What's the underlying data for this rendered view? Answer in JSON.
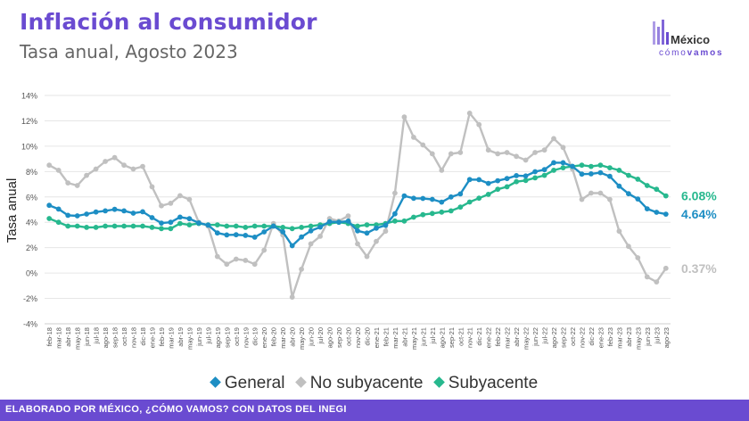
{
  "header": {
    "title": "Inflación al consumidor",
    "subtitle": "Tasa anual, Agosto 2023"
  },
  "logo": {
    "word": "México",
    "sub_a": "cómo",
    "sub_b": "vamos"
  },
  "footer": {
    "text": "ELABORADO POR MÉXICO, ¿CÓMO VAMOS? CON DATOS DEL INEGI"
  },
  "legend": [
    {
      "label": "General",
      "color": "#1d8ec4"
    },
    {
      "label": "No subyacente",
      "color": "#c0c0c0"
    },
    {
      "label": "Subyacente",
      "color": "#27b88e"
    }
  ],
  "chart_data": {
    "type": "line",
    "ylabel": "Tasa anual",
    "xlabel": "",
    "ylim": [
      -4,
      14
    ],
    "yticks": [
      "-4%",
      "-2%",
      "0%",
      "2%",
      "4%",
      "6%",
      "8%",
      "10%",
      "12%",
      "14%"
    ],
    "grid": true,
    "legend_position": "bottom",
    "x_labels": [
      "feb-18",
      "mar-18",
      "abr-18",
      "may-18",
      "jun-18",
      "jul-18",
      "ago-18",
      "sep-18",
      "oct-18",
      "nov-18",
      "dic-18",
      "ene-19",
      "feb-19",
      "mar-19",
      "abr-19",
      "may-19",
      "jun-19",
      "jul-19",
      "ago-19",
      "sep-19",
      "oct-19",
      "nov-19",
      "dic-19",
      "ene-20",
      "feb-20",
      "mar-20",
      "abr-20",
      "may-20",
      "jun-20",
      "jul-20",
      "ago-20",
      "sep-20",
      "oct-20",
      "nov-20",
      "dic-20",
      "ene-21",
      "feb-21",
      "mar-21",
      "abr-21",
      "may-21",
      "jun-21",
      "jul-21",
      "ago-21",
      "sep-21",
      "oct-21",
      "nov-21",
      "dic-21",
      "ene-22",
      "feb-22",
      "mar-22",
      "abr-22",
      "may-22",
      "jun-22",
      "jul-22",
      "ago-22",
      "sep-22",
      "oct-22",
      "nov-22",
      "dic-22",
      "ene-23",
      "feb-23",
      "mar-23",
      "abr-23",
      "may-23",
      "jun-23",
      "jul-23",
      "ago-23"
    ],
    "series": [
      {
        "name": "General",
        "color": "#1d8ec4",
        "end_label": "4.64%",
        "values": [
          5.34,
          5.04,
          4.55,
          4.51,
          4.65,
          4.81,
          4.9,
          5.02,
          4.9,
          4.72,
          4.83,
          4.37,
          3.94,
          4.0,
          4.41,
          4.28,
          3.95,
          3.78,
          3.16,
          3.0,
          3.02,
          2.97,
          2.83,
          3.24,
          3.7,
          3.25,
          2.15,
          2.84,
          3.33,
          3.62,
          4.05,
          4.01,
          4.09,
          3.33,
          3.15,
          3.54,
          3.76,
          4.67,
          6.08,
          5.89,
          5.88,
          5.81,
          5.59,
          6.0,
          6.24,
          7.37,
          7.36,
          7.07,
          7.28,
          7.45,
          7.68,
          7.65,
          7.99,
          8.15,
          8.7,
          8.7,
          8.41,
          7.8,
          7.82,
          7.91,
          7.62,
          6.85,
          6.25,
          5.84,
          5.06,
          4.79,
          4.64
        ]
      },
      {
        "name": "No subyacente",
        "color": "#c0c0c0",
        "end_label": "0.37%",
        "values": [
          8.5,
          8.1,
          7.1,
          6.9,
          7.7,
          8.2,
          8.8,
          9.1,
          8.5,
          8.2,
          8.4,
          6.8,
          5.3,
          5.5,
          6.1,
          5.8,
          4.0,
          3.7,
          1.3,
          0.7,
          1.1,
          1.0,
          0.7,
          1.8,
          3.9,
          3.0,
          -1.9,
          0.3,
          2.3,
          2.9,
          4.3,
          4.1,
          4.5,
          2.3,
          1.3,
          2.5,
          3.3,
          6.3,
          12.3,
          10.7,
          10.1,
          9.4,
          8.1,
          9.4,
          9.5,
          12.6,
          11.7,
          9.7,
          9.4,
          9.5,
          9.2,
          8.9,
          9.5,
          9.7,
          10.6,
          9.9,
          8.2,
          5.8,
          6.3,
          6.3,
          5.8,
          3.3,
          2.1,
          1.2,
          -0.3,
          -0.7,
          0.37
        ]
      },
      {
        "name": "Subyacente",
        "color": "#27b88e",
        "end_label": "6.08%",
        "values": [
          4.3,
          4.0,
          3.7,
          3.7,
          3.6,
          3.6,
          3.7,
          3.7,
          3.7,
          3.7,
          3.7,
          3.6,
          3.5,
          3.5,
          3.9,
          3.8,
          3.9,
          3.8,
          3.8,
          3.7,
          3.7,
          3.6,
          3.7,
          3.7,
          3.7,
          3.6,
          3.5,
          3.6,
          3.7,
          3.8,
          3.9,
          4.0,
          3.9,
          3.7,
          3.8,
          3.8,
          3.9,
          4.1,
          4.1,
          4.4,
          4.6,
          4.7,
          4.8,
          4.9,
          5.2,
          5.6,
          5.9,
          6.2,
          6.6,
          6.8,
          7.2,
          7.3,
          7.5,
          7.7,
          8.1,
          8.3,
          8.4,
          8.5,
          8.4,
          8.5,
          8.3,
          8.1,
          7.7,
          7.4,
          6.9,
          6.6,
          6.08
        ]
      }
    ]
  }
}
